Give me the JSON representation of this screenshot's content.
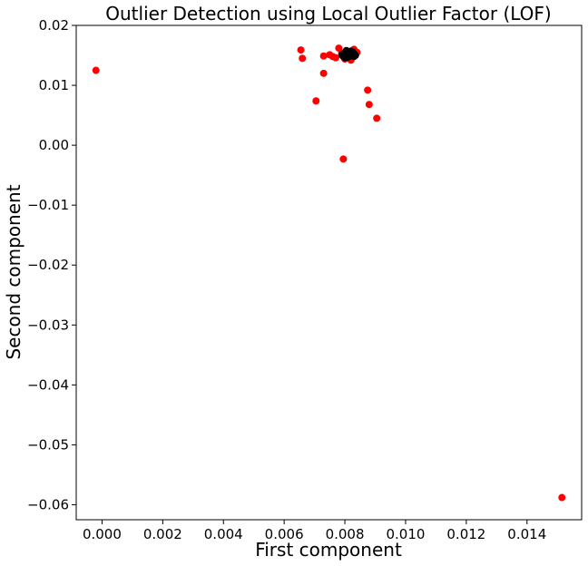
{
  "chart_data": {
    "type": "scatter",
    "title": "Outlier Detection using Local Outlier Factor (LOF)",
    "xlabel": "First component",
    "ylabel": "Second component",
    "xlim": [
      -0.00085,
      0.0158
    ],
    "ylim": [
      -0.0625,
      0.02
    ],
    "x_ticks": [
      0.0,
      0.002,
      0.004,
      0.006,
      0.008,
      0.01,
      0.012,
      0.014
    ],
    "x_tick_labels": [
      "0.000",
      "0.002",
      "0.004",
      "0.006",
      "0.008",
      "0.010",
      "0.012",
      "0.014"
    ],
    "y_ticks": [
      0.02,
      0.01,
      0.0,
      -0.01,
      -0.02,
      -0.03,
      -0.04,
      -0.05,
      -0.06
    ],
    "y_tick_labels": [
      "0.02",
      "0.01",
      "0.00",
      "−0.01",
      "−0.02",
      "−0.03",
      "−0.04",
      "−0.05",
      "−0.06"
    ],
    "grid": false,
    "series": [
      {
        "color": "#ff0000",
        "points": [
          [
            -0.0002,
            0.0125
          ],
          [
            0.00655,
            0.0159
          ],
          [
            0.0066,
            0.0145
          ],
          [
            0.00705,
            0.0074
          ],
          [
            0.0073,
            0.0149
          ],
          [
            0.0073,
            0.012
          ],
          [
            0.0075,
            0.0151
          ],
          [
            0.0076,
            0.0148
          ],
          [
            0.0077,
            0.0146
          ],
          [
            0.0078,
            0.0162
          ],
          [
            0.0079,
            0.0154
          ],
          [
            0.008,
            0.0144
          ],
          [
            0.0082,
            0.0142
          ],
          [
            0.0083,
            0.016
          ],
          [
            0.0084,
            0.0155
          ],
          [
            0.00795,
            -0.0023
          ],
          [
            0.00875,
            0.0092
          ],
          [
            0.0088,
            0.0068
          ],
          [
            0.00905,
            0.0045
          ],
          [
            0.01515,
            -0.0588
          ]
        ]
      },
      {
        "color": "#000000",
        "points": [
          [
            0.008,
            0.015
          ],
          [
            0.0081,
            0.0152
          ],
          [
            0.0082,
            0.0149
          ],
          [
            0.008,
            0.0155
          ],
          [
            0.0083,
            0.0153
          ],
          [
            0.0081,
            0.0147
          ],
          [
            0.0082,
            0.0157
          ],
          [
            0.0079,
            0.0151
          ],
          [
            0.008,
            0.0146
          ],
          [
            0.0083,
            0.0148
          ],
          [
            0.0082,
            0.0151
          ],
          [
            0.0081,
            0.0154
          ],
          [
            0.00815,
            0.015
          ],
          [
            0.00825,
            0.0156
          ],
          [
            0.00805,
            0.0158
          ],
          [
            0.00795,
            0.0148
          ],
          [
            0.00835,
            0.015
          ]
        ]
      }
    ]
  }
}
